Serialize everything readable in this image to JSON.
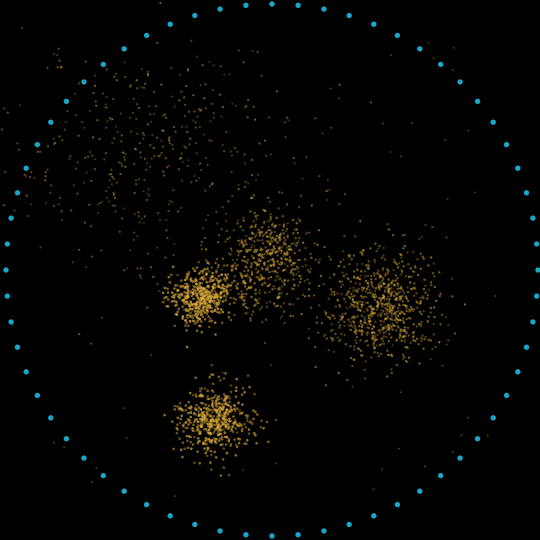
{
  "colors": {
    "background": "#000000",
    "ring_dot": "#1aa6c8",
    "cluster_dot": "#d9a93a"
  },
  "ring": {
    "description_visible": false,
    "dot_count": 64
  },
  "clusters": [
    {
      "id": "diffuse-upper-left",
      "point_count": 420,
      "density": "sparse"
    },
    {
      "id": "center-left-tight",
      "point_count": 520,
      "density": "dense"
    },
    {
      "id": "center-upper",
      "point_count": 520,
      "density": "medium"
    },
    {
      "id": "right-large",
      "point_count": 760,
      "density": "medium"
    },
    {
      "id": "lower",
      "point_count": 520,
      "density": "dense"
    }
  ]
}
